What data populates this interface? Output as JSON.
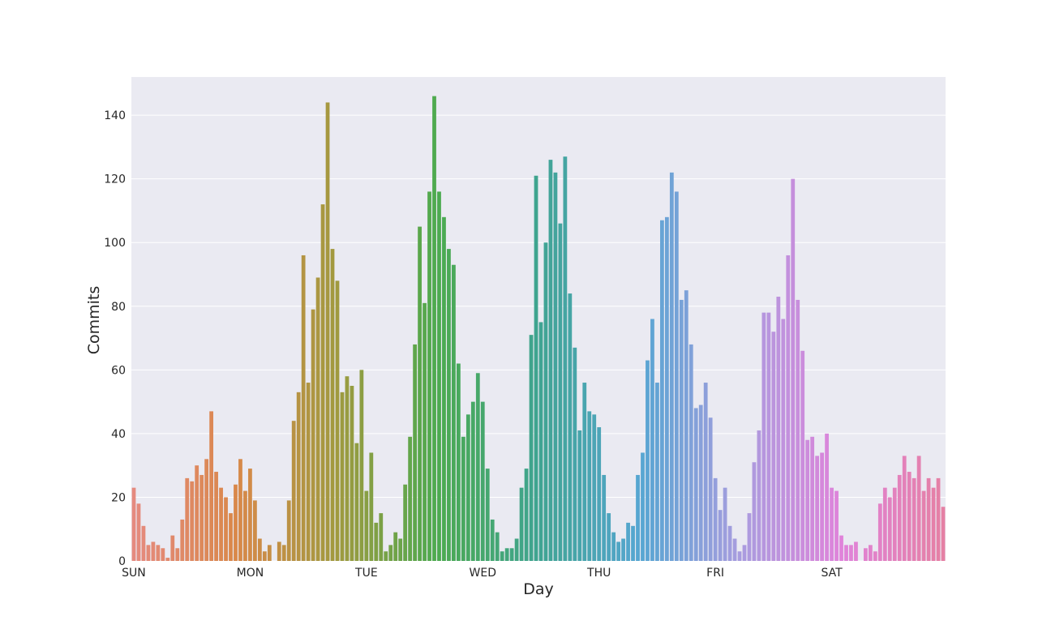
{
  "chart_data": {
    "type": "bar",
    "xlabel": "Day",
    "ylabel": "Commits",
    "ylim": [
      0,
      152
    ],
    "yticks": [
      0,
      20,
      40,
      60,
      80,
      100,
      120,
      140
    ],
    "xtick_labels": [
      "SUN",
      "MON",
      "TUE",
      "WED",
      "THU",
      "FRI",
      "SAT"
    ],
    "grid": true,
    "background": "#eaeaf2",
    "palette": [
      "#e58a7f",
      "#d9884a",
      "#a19a3f",
      "#4caa4f",
      "#3fa491",
      "#56a6d2",
      "#a99cdf",
      "#e083da",
      "#e580a4"
    ],
    "values": [
      23,
      18,
      11,
      5,
      6,
      5,
      4,
      1,
      8,
      4,
      13,
      26,
      25,
      30,
      27,
      32,
      47,
      28,
      23,
      20,
      15,
      24,
      32,
      22,
      29,
      19,
      7,
      3,
      5,
      0,
      6,
      5,
      19,
      44,
      53,
      96,
      56,
      79,
      89,
      112,
      144,
      98,
      88,
      53,
      58,
      55,
      37,
      60,
      22,
      34,
      12,
      15,
      3,
      5,
      9,
      7,
      24,
      39,
      68,
      105,
      81,
      116,
      146,
      116,
      108,
      98,
      93,
      62,
      39,
      46,
      50,
      59,
      50,
      29,
      13,
      9,
      3,
      4,
      4,
      7,
      23,
      29,
      71,
      121,
      75,
      100,
      126,
      122,
      106,
      127,
      84,
      67,
      41,
      56,
      47,
      46,
      42,
      27,
      15,
      9,
      6,
      7,
      12,
      11,
      27,
      34,
      63,
      76,
      56,
      107,
      108,
      122,
      116,
      82,
      85,
      68,
      48,
      49,
      56,
      45,
      26,
      16,
      23,
      11,
      7,
      3,
      5,
      15,
      31,
      41,
      78,
      78,
      72,
      83,
      76,
      96,
      120,
      82,
      66,
      38,
      39,
      33,
      34,
      40,
      23,
      22,
      8,
      5,
      5,
      6,
      0,
      4,
      5,
      3,
      18,
      23,
      20,
      23,
      27,
      33,
      28,
      26,
      33,
      22,
      26,
      23,
      26,
      17
    ]
  }
}
